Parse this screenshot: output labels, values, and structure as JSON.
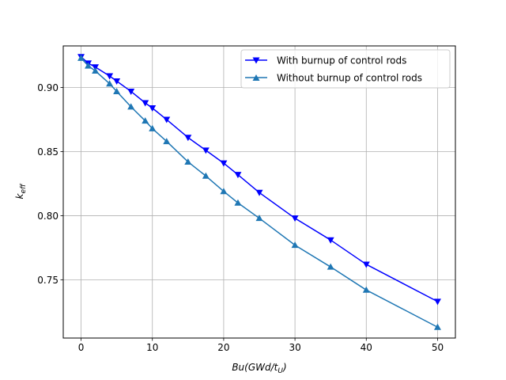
{
  "chart_data": {
    "type": "line",
    "title": "",
    "xlabel": {
      "base": "Bu(GWd/t",
      "sub": "U",
      "tail": ")"
    },
    "ylabel": {
      "base": "k",
      "sub": "eff"
    },
    "xlim": [
      -2.5,
      52.5
    ],
    "ylim": [
      0.7045,
      0.9325
    ],
    "xticks": [
      0,
      10,
      20,
      30,
      40,
      50
    ],
    "yticks": [
      0.75,
      0.8,
      0.85,
      0.9
    ],
    "xtick_labels": [
      "0",
      "10",
      "20",
      "30",
      "40",
      "50"
    ],
    "ytick_labels": [
      "0.75",
      "0.80",
      "0.85",
      "0.90"
    ],
    "grid": true,
    "legend_position": "upper right",
    "series": [
      {
        "name": "With burnup of control rods",
        "color": "#0000ff",
        "marker": "triangle-down",
        "x": [
          0,
          1,
          2,
          4,
          5,
          7,
          9,
          10,
          12,
          15,
          17.5,
          20,
          22,
          25,
          30,
          35,
          40,
          50
        ],
        "y": [
          0.924,
          0.919,
          0.916,
          0.909,
          0.905,
          0.897,
          0.888,
          0.884,
          0.875,
          0.861,
          0.851,
          0.841,
          0.832,
          0.818,
          0.798,
          0.781,
          0.762,
          0.733
        ]
      },
      {
        "name": "Without burnup of control rods",
        "color": "#1f77b4",
        "marker": "triangle-up",
        "x": [
          0,
          1,
          2,
          4,
          5,
          7,
          9,
          10,
          12,
          15,
          17.5,
          20,
          22,
          25,
          30,
          35,
          40,
          50
        ],
        "y": [
          0.923,
          0.917,
          0.913,
          0.903,
          0.897,
          0.885,
          0.874,
          0.868,
          0.858,
          0.842,
          0.831,
          0.819,
          0.81,
          0.798,
          0.777,
          0.76,
          0.742,
          0.713
        ]
      }
    ]
  }
}
